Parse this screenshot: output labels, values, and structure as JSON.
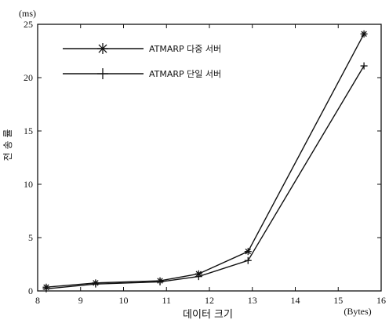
{
  "chart_data": {
    "type": "line",
    "xlabel": "데이터 크기",
    "xunit": "(Bytes)",
    "ylabel": "전 송 률",
    "yunit": "(ms)",
    "xlim": [
      8,
      16
    ],
    "ylim": [
      0,
      25
    ],
    "xticks": [
      8,
      9,
      10,
      11,
      12,
      13,
      14,
      15,
      16
    ],
    "yticks": [
      0,
      5,
      10,
      15,
      20,
      25
    ],
    "legend_position": "top-left",
    "series": [
      {
        "name": "ATMARP 다중 서버",
        "marker": "asterisk",
        "color": "#111111",
        "x": [
          8.2,
          9.35,
          10.85,
          11.75,
          12.9,
          15.6
        ],
        "y": [
          0.35,
          0.75,
          0.95,
          1.6,
          3.7,
          24.1
        ]
      },
      {
        "name": "ATMARP 단일 서버",
        "marker": "plus",
        "color": "#111111",
        "x": [
          8.2,
          9.35,
          10.85,
          11.75,
          12.9,
          15.6
        ],
        "y": [
          0.2,
          0.65,
          0.85,
          1.35,
          2.85,
          21.1
        ]
      }
    ]
  }
}
